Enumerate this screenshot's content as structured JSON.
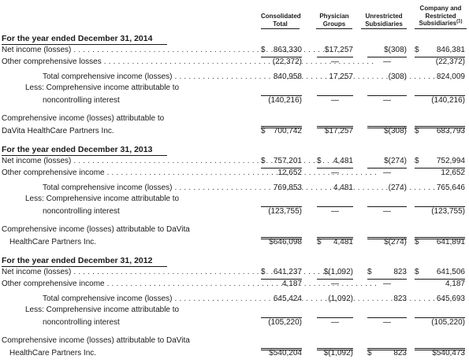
{
  "headers": {
    "consolidated": [
      "Consolidated",
      "Total"
    ],
    "physician": [
      "Physician",
      "Groups"
    ],
    "unrestricted": [
      "Unrestricted",
      "Subsidiaries"
    ],
    "restricted": [
      "Company and",
      "Restricted",
      "Subsidiaries",
      "(1)"
    ]
  },
  "sections": [
    {
      "title": "For the year ended December 31, 2014",
      "net_income": {
        "label": "Net income (losses)",
        "c1": [
          "$",
          "863,330"
        ],
        "c2": [
          "",
          "$17,257"
        ],
        "c3": [
          "",
          "$(308)"
        ],
        "c4": [
          "$",
          "846,381"
        ]
      },
      "ocl": {
        "label": "Other comprehensive losses",
        "c1": [
          "",
          "(22,372)"
        ],
        "c2": "—",
        "c3": "—",
        "c4": [
          "",
          "(22,372)"
        ]
      },
      "total": {
        "label": "Total comprehensive income (losses)",
        "c1": [
          "",
          "840,958"
        ],
        "c2": [
          "",
          "17,257"
        ],
        "c3": [
          "",
          "(308)"
        ],
        "c4": [
          "",
          "824,009"
        ]
      },
      "less": {
        "label1": "Less: Comprehensive income attributable to",
        "label2": "noncontrolling interest",
        "c1": [
          "",
          "(140,216)"
        ],
        "c2": "—",
        "c3": "—",
        "c4": [
          "",
          "(140,216)"
        ]
      },
      "attrib": {
        "label1": "Comprehensive income (losses) attributable to",
        "label2": "DaVita HealthCare Partners Inc.",
        "c1": [
          "$",
          "700,742"
        ],
        "c2": [
          "",
          "$17,257"
        ],
        "c3": [
          "",
          "$(308)"
        ],
        "c4": [
          "$",
          "683,793"
        ]
      }
    },
    {
      "title": "For the year ended December 31, 2013",
      "net_income": {
        "label": "Net income (losses)",
        "c1": [
          "$",
          "757,201"
        ],
        "c2": [
          "$",
          "4,481"
        ],
        "c3": [
          "",
          "$(274)"
        ],
        "c4": [
          "$",
          "752,994"
        ]
      },
      "ocl": {
        "label": "Other comprehensive income",
        "c1": [
          "",
          "12,652"
        ],
        "c2": "—",
        "c3": "—",
        "c4": [
          "",
          "12,652"
        ]
      },
      "total": {
        "label": "Total comprehensive income (losses)",
        "c1": [
          "",
          "769,853"
        ],
        "c2": [
          "",
          "4,481"
        ],
        "c3": [
          "",
          "(274)"
        ],
        "c4": [
          "",
          "765,646"
        ]
      },
      "less": {
        "label1": "Less: Comprehensive income attributable to",
        "label2": "noncontrolling interest",
        "c1": [
          "",
          "(123,755)"
        ],
        "c2": "—",
        "c3": "—",
        "c4": [
          "",
          "(123,755)"
        ]
      },
      "attrib": {
        "label1": "Comprehensive income (losses) attributable to DaVita",
        "label2": "HealthCare Partners Inc.",
        "c1": [
          "",
          "$646,098"
        ],
        "c2": [
          "$",
          "4,481"
        ],
        "c3": [
          "",
          "$(274)"
        ],
        "c4": [
          "$",
          "641,891"
        ]
      }
    },
    {
      "title": "For the year ended December 31, 2012",
      "net_income": {
        "label": "Net income (losses)",
        "c1": [
          "$",
          "641,237"
        ],
        "c2": [
          "",
          "$(1,092)"
        ],
        "c3": [
          "$",
          "823"
        ],
        "c4": [
          "$",
          "641,506"
        ]
      },
      "ocl": {
        "label": "Other comprehensive income",
        "c1": [
          "",
          "4,187"
        ],
        "c2": "—",
        "c3": "—",
        "c4": [
          "",
          "4,187"
        ]
      },
      "total": {
        "label": "Total comprehensive income (losses)",
        "c1": [
          "",
          "645,424"
        ],
        "c2": [
          "",
          "(1,092)"
        ],
        "c3": [
          "",
          "823"
        ],
        "c4": [
          "",
          "645,693"
        ]
      },
      "less": {
        "label1": "Less: Comprehensive income attributable to",
        "label2": "noncontrolling interest",
        "c1": [
          "",
          "(105,220)"
        ],
        "c2": "—",
        "c3": "—",
        "c4": [
          "",
          "(105,220)"
        ]
      },
      "attrib": {
        "label1": "Comprehensive income (losses) attributable to DaVita",
        "label2": "HealthCare Partners Inc.",
        "c1": [
          "",
          "$540,204"
        ],
        "c2": [
          "",
          "$(1,092)"
        ],
        "c3": [
          "$",
          "823"
        ],
        "c4": [
          "",
          "$540,473"
        ]
      }
    }
  ]
}
